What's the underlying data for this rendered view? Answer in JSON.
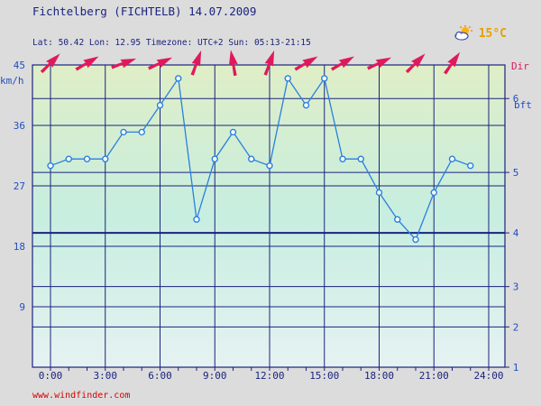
{
  "header": {
    "title": "Fichtelberg (FICHTELB) 14.07.2009",
    "info": "Lat: 50.42 Lon: 12.95 Timezone: UTC+2 Sun: 05:13-21:15"
  },
  "weather": {
    "icon": "sun-cloud-icon",
    "temperature": "15°C"
  },
  "footer": {
    "link": "www.windfinder.com"
  },
  "colors": {
    "line": "#2a7fe0",
    "grid": "#1a237e",
    "arrow": "#e0195a"
  },
  "chart_data": {
    "type": "line",
    "title": "",
    "xlabel": "",
    "ylabel": "km/h",
    "y2label": "bft",
    "dirlabel": "Dir",
    "xlim": [
      0,
      24
    ],
    "ylim": [
      0,
      45
    ],
    "x_ticks": [
      "0:00",
      "3:00",
      "6:00",
      "9:00",
      "12:00",
      "15:00",
      "18:00",
      "21:00",
      "24:00"
    ],
    "y_ticks": [
      9,
      18,
      27,
      36,
      45
    ],
    "bft_ticks": [
      {
        "label": "1",
        "kmh": 0
      },
      {
        "label": "2",
        "kmh": 6
      },
      {
        "label": "3",
        "kmh": 12
      },
      {
        "label": "4",
        "kmh": 20
      },
      {
        "label": "5",
        "kmh": 29
      },
      {
        "label": "6",
        "kmh": 40
      }
    ],
    "series": [
      {
        "x": [
          0,
          1,
          2,
          3,
          4,
          5,
          6,
          7,
          8,
          9,
          10,
          11,
          12,
          13,
          14,
          15,
          16,
          17,
          18,
          19,
          20,
          21,
          22,
          23
        ],
        "values": [
          30,
          31,
          31,
          31,
          35,
          35,
          39,
          43,
          22,
          31,
          35,
          31,
          30,
          43,
          39,
          43,
          31,
          31,
          26,
          22,
          19,
          26,
          31,
          30
        ]
      }
    ],
    "directions": {
      "hours": [
        0,
        2,
        4,
        6,
        8,
        10,
        12,
        14,
        16,
        18,
        20,
        22
      ],
      "degrees": [
        225,
        240,
        250,
        245,
        200,
        170,
        200,
        240,
        240,
        245,
        225,
        215
      ]
    }
  }
}
